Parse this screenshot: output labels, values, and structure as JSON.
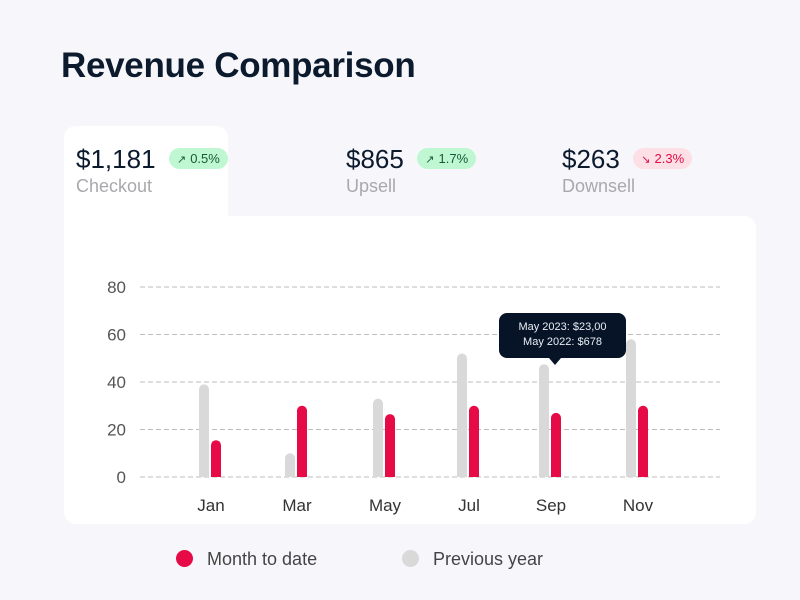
{
  "title": "Revenue Comparison",
  "colors": {
    "month_to_date": "#e60a46",
    "previous_year": "#d9d9d9",
    "grid": "#bdbdbd",
    "axis_text": "#555555"
  },
  "kpis": [
    {
      "value": "$1,181",
      "label": "Checkout",
      "change": "0.5%",
      "direction": "up",
      "arrow": "↗",
      "active": true
    },
    {
      "value": "$865",
      "label": "Upsell",
      "change": "1.7%",
      "direction": "up",
      "arrow": "↗",
      "active": false
    },
    {
      "value": "$263",
      "label": "Downsell",
      "change": "2.3%",
      "direction": "down",
      "arrow": "↘",
      "active": false
    }
  ],
  "tooltip": {
    "line1": "May 2023: $23,00",
    "line2": "May 2022: $678"
  },
  "legend": [
    {
      "label": "Month to date",
      "series": "month_to_date"
    },
    {
      "label": "Previous year",
      "series": "previous_year"
    }
  ],
  "chart_data": {
    "type": "bar",
    "title": "Revenue Comparison",
    "xlabel": "",
    "ylabel": "",
    "categories": [
      "Jan",
      "Mar",
      "May",
      "Jul",
      "Sep",
      "Nov"
    ],
    "series": [
      {
        "name": "Previous year",
        "key": "previous_year",
        "values": [
          39,
          10,
          33,
          52,
          47.5,
          58
        ]
      },
      {
        "name": "Month to date",
        "key": "month_to_date",
        "values": [
          15.5,
          30,
          26.5,
          30,
          27,
          30
        ]
      }
    ],
    "ylim": [
      0,
      80
    ],
    "yticks": [
      0,
      20,
      40,
      60,
      80
    ],
    "grid": true,
    "legend_position": "bottom"
  }
}
